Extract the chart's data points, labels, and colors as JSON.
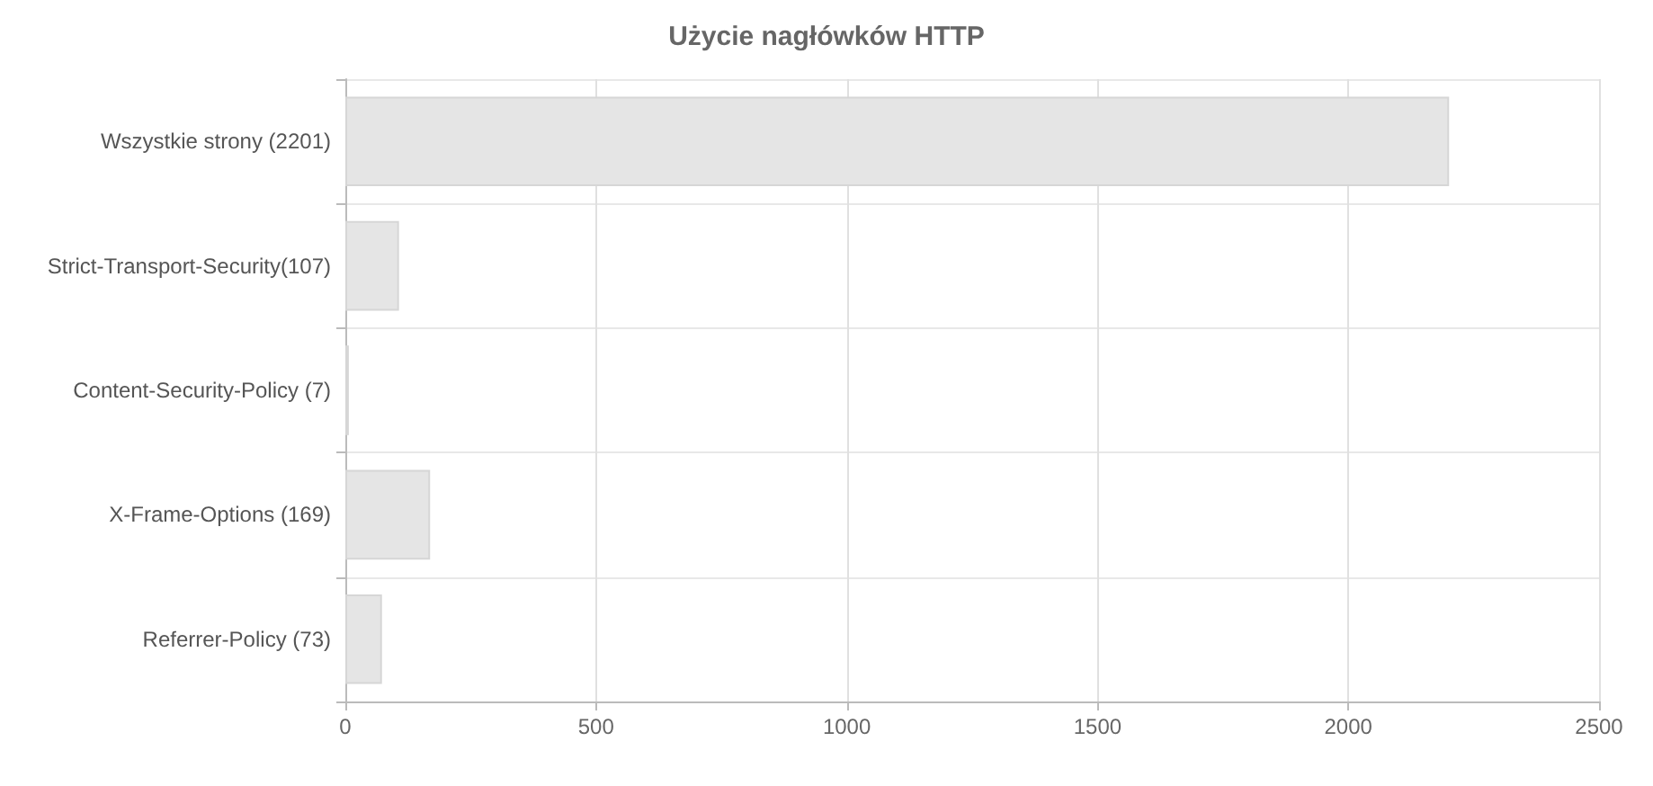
{
  "chart_data": {
    "type": "bar",
    "orientation": "horizontal",
    "title": "Użycie nagłówków HTTP",
    "categories": [
      "Wszystkie strony (2201)",
      "Strict-Transport-Security(107)",
      "Content-Security-Policy (7)",
      "X-Frame-Options (169)",
      "Referrer-Policy (73)"
    ],
    "values": [
      2201,
      107,
      7,
      169,
      73
    ],
    "color": "#e5e5e5",
    "xlim": [
      0,
      2500
    ],
    "xticks": [
      0,
      500,
      1000,
      1500,
      2000,
      2500
    ],
    "grid": true
  }
}
